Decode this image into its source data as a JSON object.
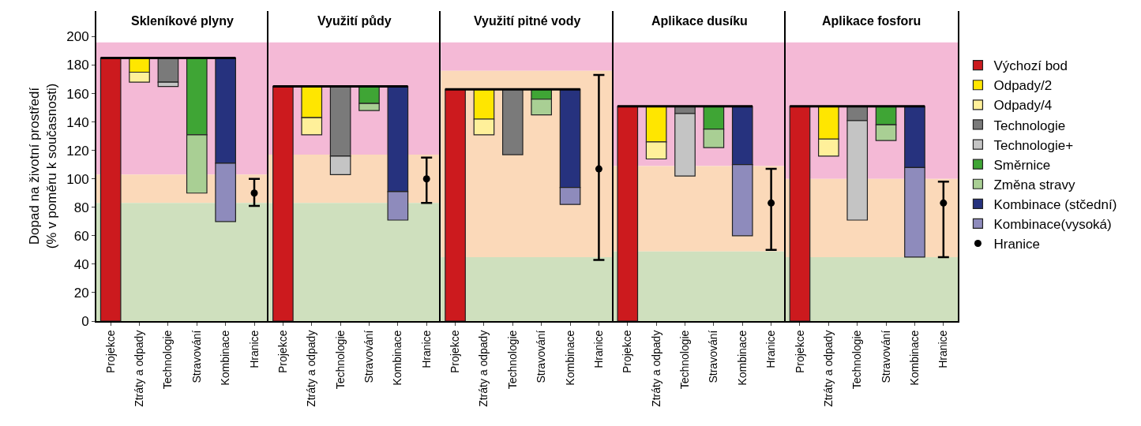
{
  "chart_data": [
    {
      "type": "bar",
      "title": "Skleníkové plyny",
      "ylabel": "Dopad na životní prostředí\n(% v poměru k současnosti)",
      "categories": [
        "Projekce",
        "Ztráty a odpady",
        "Technologie",
        "Stravování",
        "Kombinace",
        "Hranice"
      ],
      "ylim": [
        0,
        218
      ],
      "yticks": [
        0,
        20,
        40,
        60,
        80,
        100,
        120,
        140,
        160,
        180,
        200
      ],
      "grid": false,
      "marker": "circle",
      "bands": [
        {
          "axis": "y",
          "from": 103,
          "to": 196,
          "color": "#f4b9d6"
        },
        {
          "axis": "y",
          "from": 83,
          "to": 103,
          "color": "#fbd9b9"
        },
        {
          "axis": "y",
          "from": 0,
          "to": 83,
          "color": "#cfe0be"
        }
      ],
      "ref_lines": [
        {
          "axis": "y",
          "value": 185,
          "color": "#000000"
        }
      ],
      "series": [
        {
          "color": "#cc1a1e",
          "values": [
            185,
            null,
            null,
            null,
            null,
            null
          ],
          "base": [
            0,
            null,
            null,
            null,
            null,
            null
          ]
        },
        {
          "color": "#ffe600",
          "values": [
            null,
            10,
            null,
            null,
            null,
            null
          ],
          "base": [
            null,
            175,
            null,
            null,
            null,
            null
          ]
        },
        {
          "color": "#fff09a",
          "values": [
            null,
            7,
            null,
            null,
            null,
            null
          ],
          "base": [
            null,
            168,
            null,
            null,
            null,
            null
          ]
        },
        {
          "color": "#7a7a7a",
          "values": [
            null,
            null,
            17,
            null,
            null,
            null
          ],
          "base": [
            null,
            null,
            168,
            null,
            null,
            null
          ]
        },
        {
          "color": "#c4c4c4",
          "values": [
            null,
            null,
            3,
            null,
            null,
            null
          ],
          "base": [
            null,
            null,
            165,
            null,
            null,
            null
          ]
        },
        {
          "color": "#3fa535",
          "values": [
            null,
            null,
            null,
            54,
            null,
            null
          ],
          "base": [
            null,
            null,
            null,
            131,
            null,
            null
          ]
        },
        {
          "color": "#a9cf94",
          "values": [
            null,
            null,
            null,
            41,
            null,
            null
          ],
          "base": [
            null,
            null,
            null,
            90,
            null,
            null
          ]
        },
        {
          "color": "#26327e",
          "values": [
            null,
            null,
            null,
            null,
            74,
            null
          ],
          "base": [
            null,
            null,
            null,
            null,
            111,
            null
          ]
        },
        {
          "color": "#8e8bbc",
          "values": [
            null,
            null,
            null,
            null,
            41,
            null
          ],
          "base": [
            null,
            null,
            null,
            null,
            70,
            null
          ]
        },
        {
          "type": "scatter",
          "color": "#000000",
          "values": [
            null,
            null,
            null,
            null,
            null,
            90
          ],
          "errors": [
            null,
            null,
            null,
            null,
            null,
            [
              81,
              100
            ]
          ]
        }
      ]
    },
    {
      "type": "bar",
      "title": "Využití půdy",
      "categories": [
        "Projekce",
        "Ztráty a odpady",
        "Technologie",
        "Stravování",
        "Kombinace",
        "Hranice"
      ],
      "ylim": [
        0,
        218
      ],
      "yticks": [
        0,
        20,
        40,
        60,
        80,
        100,
        120,
        140,
        160,
        180,
        200
      ],
      "tick_labels": "x",
      "grid": false,
      "marker": "circle",
      "bands": [
        {
          "axis": "y",
          "from": 117,
          "to": 196,
          "color": "#f4b9d6"
        },
        {
          "axis": "y",
          "from": 83,
          "to": 117,
          "color": "#fbd9b9"
        },
        {
          "axis": "y",
          "from": 0,
          "to": 83,
          "color": "#cfe0be"
        }
      ],
      "ref_lines": [
        {
          "axis": "y",
          "value": 165,
          "color": "#000000"
        }
      ],
      "series": [
        {
          "color": "#cc1a1e",
          "values": [
            165,
            null,
            null,
            null,
            null,
            null
          ],
          "base": [
            0,
            null,
            null,
            null,
            null,
            null
          ]
        },
        {
          "color": "#ffe600",
          "values": [
            null,
            22,
            null,
            null,
            null,
            null
          ],
          "base": [
            null,
            143,
            null,
            null,
            null,
            null
          ]
        },
        {
          "color": "#fff09a",
          "values": [
            null,
            12,
            null,
            null,
            null,
            null
          ],
          "base": [
            null,
            131,
            null,
            null,
            null,
            null
          ]
        },
        {
          "color": "#7a7a7a",
          "values": [
            null,
            null,
            49,
            null,
            null,
            null
          ],
          "base": [
            null,
            null,
            116,
            null,
            null,
            null
          ]
        },
        {
          "color": "#c4c4c4",
          "values": [
            null,
            null,
            13,
            null,
            null,
            null
          ],
          "base": [
            null,
            null,
            103,
            null,
            null,
            null
          ]
        },
        {
          "color": "#3fa535",
          "values": [
            null,
            null,
            null,
            12,
            null,
            null
          ],
          "base": [
            null,
            null,
            null,
            153,
            null,
            null
          ]
        },
        {
          "color": "#a9cf94",
          "values": [
            null,
            null,
            null,
            5,
            null,
            null
          ],
          "base": [
            null,
            null,
            null,
            148,
            null,
            null
          ]
        },
        {
          "color": "#26327e",
          "values": [
            null,
            null,
            null,
            null,
            74,
            null
          ],
          "base": [
            null,
            null,
            null,
            null,
            91,
            null
          ]
        },
        {
          "color": "#8e8bbc",
          "values": [
            null,
            null,
            null,
            null,
            20,
            null
          ],
          "base": [
            null,
            null,
            null,
            null,
            71,
            null
          ]
        },
        {
          "type": "scatter",
          "color": "#000000",
          "values": [
            null,
            null,
            null,
            null,
            null,
            100
          ],
          "errors": [
            null,
            null,
            null,
            null,
            null,
            [
              83,
              115
            ]
          ]
        }
      ]
    },
    {
      "type": "bar",
      "title": "Využití pitné vody",
      "categories": [
        "Projekce",
        "Ztráty a odpady",
        "Technologie",
        "Stravování",
        "Kombinace",
        "Hranice"
      ],
      "ylim": [
        0,
        218
      ],
      "yticks": [
        0,
        20,
        40,
        60,
        80,
        100,
        120,
        140,
        160,
        180,
        200
      ],
      "tick_labels": "x",
      "grid": false,
      "marker": "circle",
      "bands": [
        {
          "axis": "y",
          "from": 176,
          "to": 196,
          "color": "#f4b9d6"
        },
        {
          "axis": "y",
          "from": 45,
          "to": 176,
          "color": "#fbd9b9"
        },
        {
          "axis": "y",
          "from": 0,
          "to": 45,
          "color": "#cfe0be"
        }
      ],
      "ref_lines": [
        {
          "axis": "y",
          "value": 163,
          "color": "#000000"
        }
      ],
      "series": [
        {
          "color": "#cc1a1e",
          "values": [
            163,
            null,
            null,
            null,
            null,
            null
          ],
          "base": [
            0,
            null,
            null,
            null,
            null,
            null
          ]
        },
        {
          "color": "#ffe600",
          "values": [
            null,
            21,
            null,
            null,
            null,
            null
          ],
          "base": [
            null,
            142,
            null,
            null,
            null,
            null
          ]
        },
        {
          "color": "#fff09a",
          "values": [
            null,
            11,
            null,
            null,
            null,
            null
          ],
          "base": [
            null,
            131,
            null,
            null,
            null,
            null
          ]
        },
        {
          "color": "#7a7a7a",
          "values": [
            null,
            null,
            46,
            null,
            null,
            null
          ],
          "base": [
            null,
            null,
            117,
            null,
            null,
            null
          ]
        },
        {
          "color": "#3fa535",
          "values": [
            null,
            null,
            null,
            7,
            null,
            null
          ],
          "base": [
            null,
            null,
            null,
            156,
            null,
            null
          ]
        },
        {
          "color": "#a9cf94",
          "values": [
            null,
            null,
            null,
            11,
            null,
            null
          ],
          "base": [
            null,
            null,
            null,
            145,
            null,
            null
          ]
        },
        {
          "color": "#26327e",
          "values": [
            null,
            null,
            null,
            null,
            69,
            null
          ],
          "base": [
            null,
            null,
            null,
            null,
            94,
            null
          ]
        },
        {
          "color": "#8e8bbc",
          "values": [
            null,
            null,
            null,
            null,
            12,
            null
          ],
          "base": [
            null,
            null,
            null,
            null,
            82,
            null
          ]
        },
        {
          "type": "scatter",
          "color": "#000000",
          "values": [
            null,
            null,
            null,
            null,
            null,
            107
          ],
          "errors": [
            null,
            null,
            null,
            null,
            null,
            [
              43,
              173
            ]
          ]
        }
      ]
    },
    {
      "type": "bar",
      "title": "Aplikace dusíku",
      "categories": [
        "Projekce",
        "Ztráty a odpady",
        "Technologie",
        "Stravování",
        "Kombinace",
        "Hranice"
      ],
      "ylim": [
        0,
        218
      ],
      "yticks": [
        0,
        20,
        40,
        60,
        80,
        100,
        120,
        140,
        160,
        180,
        200
      ],
      "tick_labels": "x",
      "grid": false,
      "marker": "circle",
      "bands": [
        {
          "axis": "y",
          "from": 109,
          "to": 196,
          "color": "#f4b9d6"
        },
        {
          "axis": "y",
          "from": 49,
          "to": 109,
          "color": "#fbd9b9"
        },
        {
          "axis": "y",
          "from": 0,
          "to": 49,
          "color": "#cfe0be"
        }
      ],
      "ref_lines": [
        {
          "axis": "y",
          "value": 151,
          "color": "#000000"
        }
      ],
      "series": [
        {
          "color": "#cc1a1e",
          "values": [
            151,
            null,
            null,
            null,
            null,
            null
          ],
          "base": [
            0,
            null,
            null,
            null,
            null,
            null
          ]
        },
        {
          "color": "#ffe600",
          "values": [
            null,
            25,
            null,
            null,
            null,
            null
          ],
          "base": [
            null,
            126,
            null,
            null,
            null,
            null
          ]
        },
        {
          "color": "#fff09a",
          "values": [
            null,
            12,
            null,
            null,
            null,
            null
          ],
          "base": [
            null,
            114,
            null,
            null,
            null,
            null
          ]
        },
        {
          "color": "#7a7a7a",
          "values": [
            null,
            null,
            5,
            null,
            null,
            null
          ],
          "base": [
            null,
            null,
            146,
            null,
            null,
            null
          ]
        },
        {
          "color": "#c4c4c4",
          "values": [
            null,
            null,
            44,
            null,
            null,
            null
          ],
          "base": [
            null,
            null,
            102,
            null,
            null,
            null
          ]
        },
        {
          "color": "#3fa535",
          "values": [
            null,
            null,
            null,
            16,
            null,
            null
          ],
          "base": [
            null,
            null,
            null,
            135,
            null,
            null
          ]
        },
        {
          "color": "#a9cf94",
          "values": [
            null,
            null,
            null,
            13,
            null,
            null
          ],
          "base": [
            null,
            null,
            null,
            122,
            null,
            null
          ]
        },
        {
          "color": "#26327e",
          "values": [
            null,
            null,
            null,
            null,
            41,
            null
          ],
          "base": [
            null,
            null,
            null,
            null,
            110,
            null
          ]
        },
        {
          "color": "#8e8bbc",
          "values": [
            null,
            null,
            null,
            null,
            50,
            null
          ],
          "base": [
            null,
            null,
            null,
            null,
            60,
            null
          ]
        },
        {
          "type": "scatter",
          "color": "#000000",
          "values": [
            null,
            null,
            null,
            null,
            null,
            83
          ],
          "errors": [
            null,
            null,
            null,
            null,
            null,
            [
              50,
              107
            ]
          ]
        }
      ]
    },
    {
      "type": "bar",
      "title": "Aplikace fosforu",
      "categories": [
        "Projekce",
        "Ztráty a odpady",
        "Technologie",
        "Stravování",
        "Kombinace",
        "Hranice"
      ],
      "ylim": [
        0,
        218
      ],
      "yticks": [
        0,
        20,
        40,
        60,
        80,
        100,
        120,
        140,
        160,
        180,
        200
      ],
      "tick_labels": "x",
      "grid": false,
      "marker": "circle",
      "legend": "right",
      "bands": [
        {
          "axis": "y",
          "from": 100,
          "to": 196,
          "color": "#f4b9d6"
        },
        {
          "axis": "y",
          "from": 45,
          "to": 100,
          "color": "#fbd9b9"
        },
        {
          "axis": "y",
          "from": 0,
          "to": 45,
          "color": "#cfe0be"
        }
      ],
      "ref_lines": [
        {
          "axis": "y",
          "value": 151,
          "color": "#000000"
        }
      ],
      "series": [
        {
          "name": "Výchozí bod",
          "color": "#cc1a1e",
          "values": [
            151,
            null,
            null,
            null,
            null,
            null
          ],
          "base": [
            0,
            null,
            null,
            null,
            null,
            null
          ]
        },
        {
          "name": "Odpady/2",
          "color": "#ffe600",
          "values": [
            null,
            23,
            null,
            null,
            null,
            null
          ],
          "base": [
            null,
            128,
            null,
            null,
            null,
            null
          ]
        },
        {
          "name": "Odpady/4",
          "color": "#fff09a",
          "values": [
            null,
            12,
            null,
            null,
            null,
            null
          ],
          "base": [
            null,
            116,
            null,
            null,
            null,
            null
          ]
        },
        {
          "name": "Technologie",
          "color": "#7a7a7a",
          "values": [
            null,
            null,
            10,
            null,
            null,
            null
          ],
          "base": [
            null,
            null,
            141,
            null,
            null,
            null
          ]
        },
        {
          "name": "Technologie+",
          "color": "#c4c4c4",
          "values": [
            null,
            null,
            70,
            null,
            null,
            null
          ],
          "base": [
            null,
            null,
            71,
            null,
            null,
            null
          ]
        },
        {
          "name": "Směrnice",
          "color": "#3fa535",
          "values": [
            null,
            null,
            null,
            13,
            null,
            null
          ],
          "base": [
            null,
            null,
            null,
            138,
            null,
            null
          ]
        },
        {
          "name": "Změna stravy",
          "color": "#a9cf94",
          "values": [
            null,
            null,
            null,
            11,
            null,
            null
          ],
          "base": [
            null,
            null,
            null,
            127,
            null,
            null
          ]
        },
        {
          "name": "Kombinace (stčední)",
          "color": "#26327e",
          "values": [
            null,
            null,
            null,
            null,
            43,
            null
          ],
          "base": [
            null,
            null,
            null,
            null,
            108,
            null
          ]
        },
        {
          "name": "Kombinace(vysoká)",
          "color": "#8e8bbc",
          "values": [
            null,
            null,
            null,
            null,
            63,
            null
          ],
          "base": [
            null,
            null,
            null,
            null,
            45,
            null
          ]
        },
        {
          "name": "Hranice",
          "type": "scatter",
          "color": "#000000",
          "values": [
            null,
            null,
            null,
            null,
            null,
            83
          ],
          "errors": [
            null,
            null,
            null,
            null,
            null,
            [
              45,
              98
            ]
          ]
        }
      ]
    }
  ]
}
